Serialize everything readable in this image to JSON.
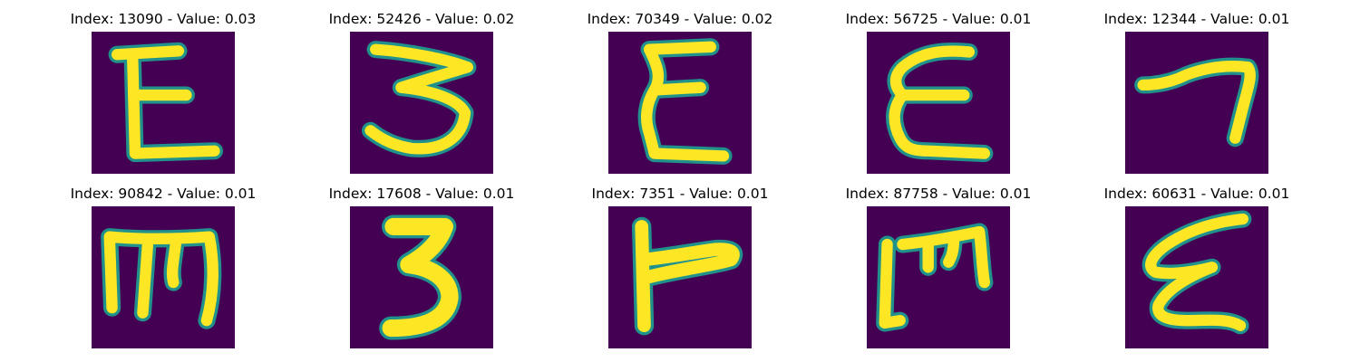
{
  "colors": {
    "background": "#440154",
    "stroke": "#fde725",
    "edge": "#21918c"
  },
  "panels": [
    {
      "index": "13090",
      "value": "0.03",
      "title": "Index: 13090 - Value: 0.03",
      "glyph": "E"
    },
    {
      "index": "52426",
      "value": "0.02",
      "title": "Index: 52426 - Value: 0.02",
      "glyph": "3"
    },
    {
      "index": "70349",
      "value": "0.02",
      "title": "Index: 70349 - Value: 0.02",
      "glyph": "E"
    },
    {
      "index": "56725",
      "value": "0.01",
      "title": "Index: 56725 - Value: 0.01",
      "glyph": "E"
    },
    {
      "index": "12344",
      "value": "0.01",
      "title": "Index: 12344 - Value: 0.01",
      "glyph": "7"
    },
    {
      "index": "90842",
      "value": "0.01",
      "title": "Index: 90842 - Value: 0.01",
      "glyph": "m"
    },
    {
      "index": "17608",
      "value": "0.01",
      "title": "Index: 17608 - Value: 0.01",
      "glyph": "3"
    },
    {
      "index": "7351",
      "value": "0.01",
      "title": "Index: 7351 - Value: 0.01",
      "glyph": "F"
    },
    {
      "index": "87758",
      "value": "0.01",
      "title": "Index: 87758 - Value: 0.01",
      "glyph": "m"
    },
    {
      "index": "60631",
      "value": "0.01",
      "title": "Index: 60631 - Value: 0.01",
      "glyph": "E"
    }
  ]
}
